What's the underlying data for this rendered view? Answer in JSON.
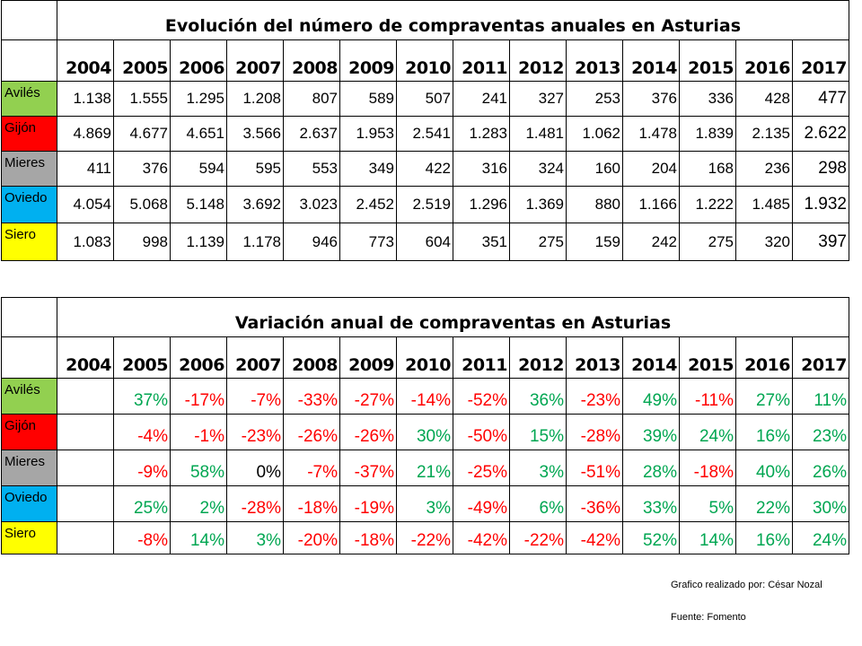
{
  "colors": {
    "Avilés": "#92d050",
    "Gijón": "#ff0000",
    "Mieres": "#a6a6a6",
    "Oviedo": "#00b0f0",
    "Siero": "#ffff00",
    "positive": "#00a651",
    "negative": "#ff0000",
    "zero": "#000000"
  },
  "years": [
    "2004",
    "2005",
    "2006",
    "2007",
    "2008",
    "2009",
    "2010",
    "2011",
    "2012",
    "2013",
    "2014",
    "2015",
    "2016",
    "2017"
  ],
  "sales_table": {
    "title": "Evolución del número de compraventas anuales en Asturias",
    "rows": [
      {
        "city": "Avilés",
        "values": [
          "1.138",
          "1.555",
          "1.295",
          "1.208",
          "807",
          "589",
          "507",
          "241",
          "327",
          "253",
          "376",
          "336",
          "428",
          "477"
        ]
      },
      {
        "city": "Gijón",
        "values": [
          "4.869",
          "4.677",
          "4.651",
          "3.566",
          "2.637",
          "1.953",
          "2.541",
          "1.283",
          "1.481",
          "1.062",
          "1.478",
          "1.839",
          "2.135",
          "2.622"
        ]
      },
      {
        "city": "Mieres",
        "values": [
          "411",
          "376",
          "594",
          "595",
          "553",
          "349",
          "422",
          "316",
          "324",
          "160",
          "204",
          "168",
          "236",
          "298"
        ]
      },
      {
        "city": "Oviedo",
        "values": [
          "4.054",
          "5.068",
          "5.148",
          "3.692",
          "3.023",
          "2.452",
          "2.519",
          "1.296",
          "1.369",
          "880",
          "1.166",
          "1.222",
          "1.485",
          "1.932"
        ]
      },
      {
        "city": "Siero",
        "values": [
          "1.083",
          "998",
          "1.139",
          "1.178",
          "946",
          "773",
          "604",
          "351",
          "275",
          "159",
          "242",
          "275",
          "320",
          "397"
        ]
      }
    ]
  },
  "variation_table": {
    "title": "Variación anual de compraventas en Asturias",
    "rows": [
      {
        "city": "Avilés",
        "values": [
          "",
          "37%",
          "-17%",
          "-7%",
          "-33%",
          "-27%",
          "-14%",
          "-52%",
          "36%",
          "-23%",
          "49%",
          "-11%",
          "27%",
          "11%"
        ]
      },
      {
        "city": "Gijón",
        "values": [
          "",
          "-4%",
          "-1%",
          "-23%",
          "-26%",
          "-26%",
          "30%",
          "-50%",
          "15%",
          "-28%",
          "39%",
          "24%",
          "16%",
          "23%"
        ]
      },
      {
        "city": "Mieres",
        "values": [
          "",
          "-9%",
          "58%",
          "0%",
          "-7%",
          "-37%",
          "21%",
          "-25%",
          "3%",
          "-51%",
          "28%",
          "-18%",
          "40%",
          "26%"
        ]
      },
      {
        "city": "Oviedo",
        "values": [
          "",
          "25%",
          "2%",
          "-28%",
          "-18%",
          "-19%",
          "3%",
          "-49%",
          "6%",
          "-36%",
          "33%",
          "5%",
          "22%",
          "30%"
        ]
      },
      {
        "city": "Siero",
        "values": [
          "",
          "-8%",
          "14%",
          "3%",
          "-20%",
          "-18%",
          "-22%",
          "-42%",
          "-22%",
          "-42%",
          "52%",
          "14%",
          "16%",
          "24%"
        ]
      }
    ]
  },
  "footer": {
    "credit": "Grafico realizado por: César Nozal",
    "source": "Fuente: Fomento"
  }
}
